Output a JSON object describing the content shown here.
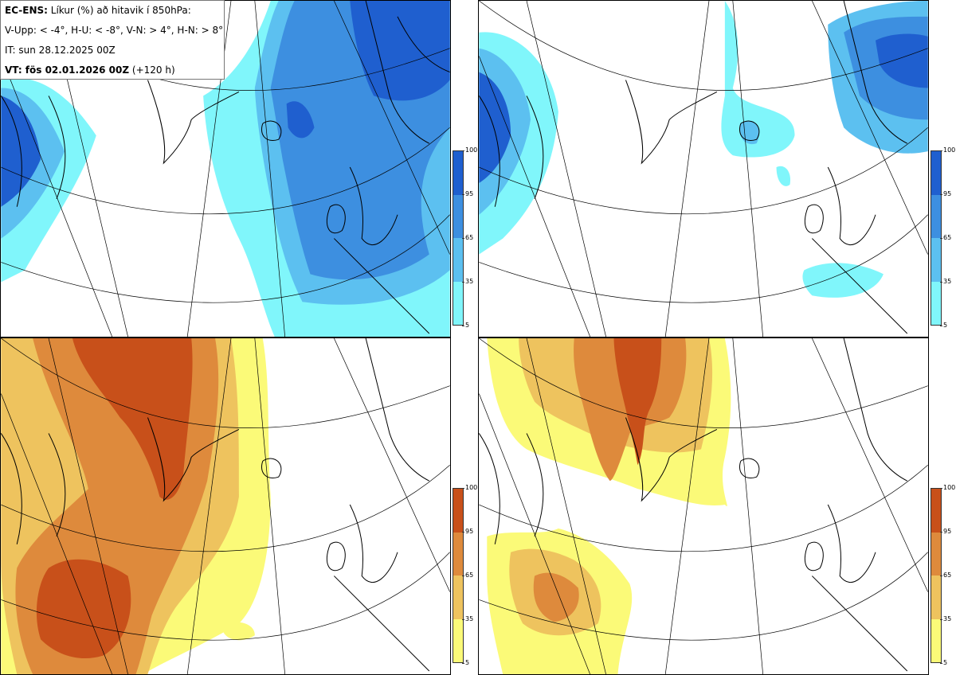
{
  "header": {
    "product": "EC-ENS:",
    "description": "Líkur (%) að hitavik í 850hPa:",
    "thresholds": "V-Upp: < -4°, H-U: < -8°, V-N: > 4°, H-N: > 8°",
    "initial_time": "IT: sun 28.12.2025 00Z",
    "valid_label": "VT: fös 02.01.2026 00Z",
    "lead_time": "(+120 h)"
  },
  "panels": [
    {
      "id": "V-Upp",
      "description": "cold anomaly < -4°",
      "palette": "blue"
    },
    {
      "id": "H-U",
      "description": "cold anomaly < -8°",
      "palette": "blue"
    },
    {
      "id": "V-N",
      "description": "warm anomaly > 4°",
      "palette": "orange"
    },
    {
      "id": "H-N",
      "description": "warm anomaly > 8°",
      "palette": "orange"
    }
  ],
  "colorbar": {
    "ticks": [
      "100",
      "95",
      "65",
      "35",
      "5"
    ],
    "blue_colors": [
      "#1f5fcf",
      "#3d8fe0",
      "#5cc0f0",
      "#80f6fb"
    ],
    "orange_colors": [
      "#c8501a",
      "#de8a3c",
      "#eec35e",
      "#fbfa78"
    ]
  }
}
